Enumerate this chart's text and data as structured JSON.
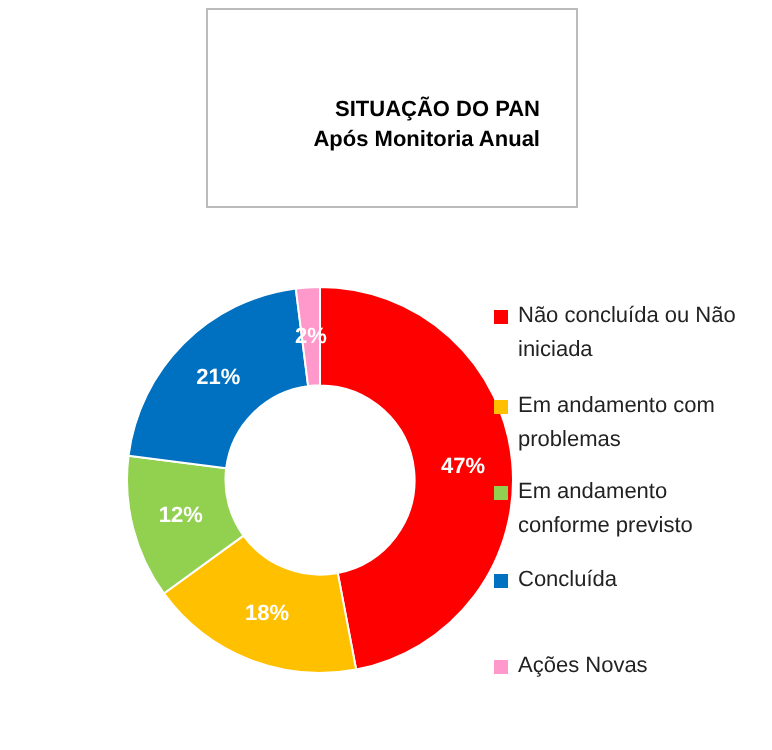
{
  "chart_data": {
    "type": "donut",
    "title": "SITUAÇÃO DO PAN",
    "subtitle": "Após Monitoria Anual",
    "categories": [
      "Não concluída ou Não iniciada",
      "Em andamento com problemas",
      "Em andamento conforme previsto",
      "Concluída",
      "Ações Novas"
    ],
    "values": [
      47,
      18,
      12,
      21,
      2
    ],
    "colors": [
      "#ff0000",
      "#ffc000",
      "#92d050",
      "#0070c0",
      "#ff99cc"
    ],
    "value_labels": [
      "47%",
      "18%",
      "12%",
      "21%",
      "2%"
    ],
    "legend": "right"
  }
}
